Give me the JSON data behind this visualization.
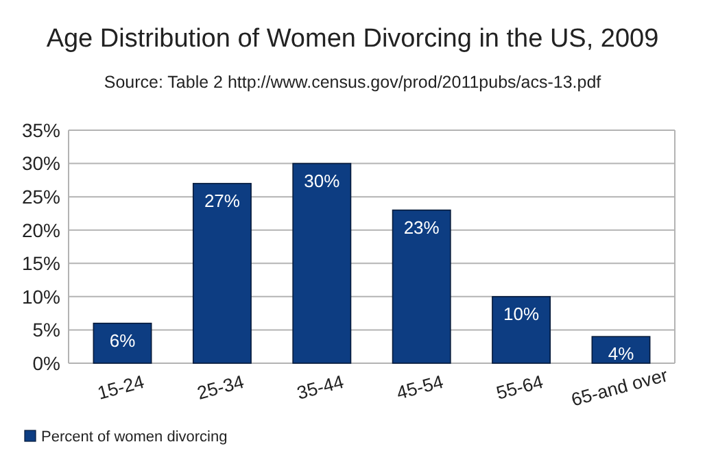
{
  "chart_data": {
    "type": "bar",
    "title": "Age Distribution of Women Divorcing in the US, 2009",
    "subtitle": "Source:  Table 2  http://www.census.gov/prod/2011pubs/acs-13.pdf",
    "categories": [
      "15-24",
      "25-34",
      "35-44",
      "45-54",
      "55-64",
      "65-and over"
    ],
    "series": [
      {
        "name": "Percent of women divorcing",
        "color": "#0d3d82",
        "values": [
          6,
          27,
          30,
          23,
          10,
          4
        ],
        "value_labels": [
          "6%",
          "27%",
          "30%",
          "23%",
          "10%",
          "4%"
        ]
      }
    ],
    "ylim": [
      0,
      35
    ],
    "yticks": [
      {
        "value": 0,
        "label": "0%"
      },
      {
        "value": 5,
        "label": "5%"
      },
      {
        "value": 10,
        "label": "10%"
      },
      {
        "value": 15,
        "label": "15%"
      },
      {
        "value": 20,
        "label": "20%"
      },
      {
        "value": 25,
        "label": "25%"
      },
      {
        "value": 30,
        "label": "30%"
      },
      {
        "value": 35,
        "label": "35%"
      }
    ],
    "grid": "y",
    "legend": "bottom left"
  }
}
